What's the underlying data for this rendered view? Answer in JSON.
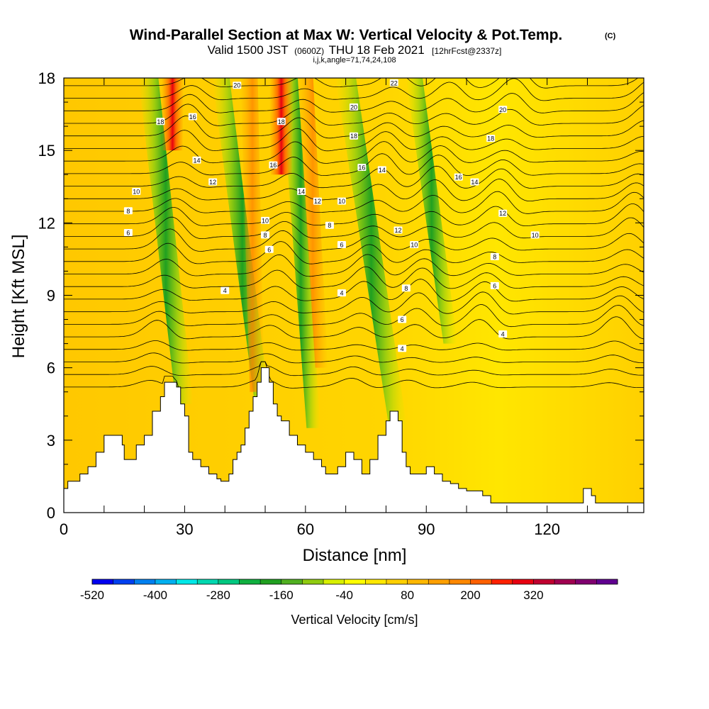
{
  "chart_data": {
    "type": "heatmap",
    "title": "Wind-Parallel Section at Max W: Vertical Velocity & Pot.Temp.",
    "title_units": "(C)",
    "subtitle": {
      "valid": "Valid 1500 JST",
      "utc": "(0600Z)",
      "date": "THU 18 Feb 2021",
      "forecast": "[12hrFcst@2337z]"
    },
    "grid_info": "i,j,k,angle=71,74,24,108",
    "xlabel": "Distance [nm]",
    "ylabel": "Height [Kft MSL]",
    "xlim": [
      0,
      144
    ],
    "ylim": [
      0,
      18
    ],
    "x_ticks": [
      0,
      30,
      60,
      90,
      120
    ],
    "y_ticks": [
      0,
      3,
      6,
      9,
      12,
      15,
      18
    ],
    "terrain": {
      "x": [
        0,
        1,
        2,
        4,
        6,
        8,
        10,
        14,
        14.5,
        15,
        16,
        18,
        20,
        22,
        24,
        25,
        26,
        27,
        28,
        29,
        30,
        31,
        32,
        34,
        36,
        38,
        39,
        40,
        41,
        42,
        43,
        44,
        45,
        46,
        47,
        48,
        49,
        50,
        51,
        52,
        53,
        54,
        56,
        58,
        60,
        62,
        64,
        65,
        66,
        68,
        70,
        72,
        74,
        75,
        76,
        78,
        80,
        81,
        82,
        83,
        84,
        85,
        86,
        88,
        90,
        92,
        94,
        96,
        98,
        100,
        104,
        106,
        110,
        114,
        118,
        122,
        126,
        128,
        129,
        130,
        131,
        132,
        136,
        140,
        144
      ],
      "y": [
        1.0,
        1.3,
        1.3,
        1.6,
        1.9,
        2.5,
        3.2,
        3.2,
        2.8,
        2.2,
        2.2,
        2.8,
        3.2,
        4.2,
        4.8,
        5.4,
        5.4,
        5.4,
        5.2,
        4.5,
        4.0,
        2.5,
        2.2,
        1.9,
        1.6,
        1.4,
        1.3,
        1.3,
        1.6,
        2.2,
        2.5,
        2.8,
        3.5,
        4.2,
        4.8,
        5.4,
        6.0,
        6.0,
        5.4,
        4.5,
        4.0,
        3.8,
        3.2,
        2.8,
        2.5,
        2.2,
        1.9,
        1.6,
        1.6,
        1.9,
        2.5,
        2.2,
        1.6,
        1.6,
        2.2,
        3.2,
        3.8,
        4.2,
        4.2,
        3.8,
        2.5,
        1.9,
        1.6,
        1.6,
        1.9,
        1.6,
        1.3,
        1.2,
        1.0,
        0.9,
        0.7,
        0.4,
        0.4,
        0.4,
        0.4,
        0.4,
        0.4,
        0.4,
        1.0,
        1.0,
        0.7,
        0.4,
        0.4,
        0.4,
        0.4
      ]
    },
    "theta_contours": {
      "levels": [
        4,
        6,
        8,
        10,
        12,
        14,
        16,
        18,
        20,
        22
      ],
      "base_heights_kft": [
        8.5,
        9.6,
        10.9,
        11.8,
        12.7,
        13.6,
        14.6,
        15.6,
        16.6,
        17.6
      ],
      "wave_crests_x": [
        22,
        50,
        72,
        86,
        102,
        136
      ],
      "labels": [
        {
          "level": "18",
          "x": 24,
          "y": 16.2
        },
        {
          "level": "16",
          "x": 32,
          "y": 16.4
        },
        {
          "level": "20",
          "x": 43,
          "y": 17.7
        },
        {
          "level": "14",
          "x": 33,
          "y": 14.6
        },
        {
          "level": "12",
          "x": 37,
          "y": 13.7
        },
        {
          "level": "10",
          "x": 18,
          "y": 13.3
        },
        {
          "level": "8",
          "x": 16,
          "y": 12.5
        },
        {
          "level": "6",
          "x": 16,
          "y": 11.6
        },
        {
          "level": "4",
          "x": 40,
          "y": 9.2
        },
        {
          "level": "18",
          "x": 54,
          "y": 16.2
        },
        {
          "level": "16",
          "x": 52,
          "y": 14.4
        },
        {
          "level": "10",
          "x": 50,
          "y": 12.1
        },
        {
          "level": "8",
          "x": 50,
          "y": 11.5
        },
        {
          "level": "6",
          "x": 51,
          "y": 10.9
        },
        {
          "level": "14",
          "x": 59,
          "y": 13.3
        },
        {
          "level": "12",
          "x": 63,
          "y": 12.9
        },
        {
          "level": "8",
          "x": 66,
          "y": 11.9
        },
        {
          "level": "6",
          "x": 69,
          "y": 11.1
        },
        {
          "level": "4",
          "x": 69,
          "y": 9.1
        },
        {
          "level": "10",
          "x": 69,
          "y": 12.9
        },
        {
          "level": "22",
          "x": 82,
          "y": 17.8
        },
        {
          "level": "20",
          "x": 72,
          "y": 16.8
        },
        {
          "level": "18",
          "x": 72,
          "y": 15.6
        },
        {
          "level": "16",
          "x": 74,
          "y": 14.3
        },
        {
          "level": "14",
          "x": 79,
          "y": 14.2
        },
        {
          "level": "12",
          "x": 83,
          "y": 11.7
        },
        {
          "level": "10",
          "x": 87,
          "y": 11.1
        },
        {
          "level": "8",
          "x": 85,
          "y": 9.3
        },
        {
          "level": "6",
          "x": 84,
          "y": 8.0
        },
        {
          "level": "4",
          "x": 84,
          "y": 6.8
        },
        {
          "level": "20",
          "x": 109,
          "y": 16.7
        },
        {
          "level": "18",
          "x": 106,
          "y": 15.5
        },
        {
          "level": "16",
          "x": 98,
          "y": 13.9
        },
        {
          "level": "14",
          "x": 102,
          "y": 13.7
        },
        {
          "level": "12",
          "x": 109,
          "y": 12.4
        },
        {
          "level": "10",
          "x": 117,
          "y": 11.5
        },
        {
          "level": "8",
          "x": 107,
          "y": 10.6
        },
        {
          "level": "6",
          "x": 107,
          "y": 9.4
        },
        {
          "level": "4",
          "x": 109,
          "y": 7.4
        }
      ]
    },
    "vertical_velocity_features": [
      {
        "x_base": 30,
        "x_top": 21,
        "y_base": 4.5,
        "value": -200
      },
      {
        "x_base": 50,
        "x_top": 39,
        "y_base": 3.5,
        "value": -160
      },
      {
        "x_base": 62,
        "x_top": 56,
        "y_base": 3.5,
        "value": -150
      },
      {
        "x_base": 83,
        "x_top": 70,
        "y_base": 3.5,
        "value": -210
      },
      {
        "x_base": 96,
        "x_top": 87,
        "y_base": 7.0,
        "value": -150
      },
      {
        "x_base": 27,
        "x_top": 27,
        "y_base": 15.0,
        "value": 240
      },
      {
        "x_base": 54,
        "x_top": 54,
        "y_base": 14.0,
        "value": 260
      },
      {
        "x_base": 48,
        "x_top": 46,
        "y_base": 5.0,
        "value": 160
      },
      {
        "x_base": 64,
        "x_top": 60,
        "y_base": 6.0,
        "value": 130
      }
    ],
    "colorbar": {
      "title": "Vertical Velocity [cm/s]",
      "tick_labels": [
        "-520",
        "-400",
        "-280",
        "-160",
        "-40",
        "80",
        "200",
        "320"
      ],
      "colors": [
        "#0000f0",
        "#0040f0",
        "#0080f0",
        "#00b0f0",
        "#00e8e8",
        "#00d8b0",
        "#00c880",
        "#10b040",
        "#20a020",
        "#50b020",
        "#90cc10",
        "#d8f000",
        "#ffff00",
        "#ffe800",
        "#ffd000",
        "#ffb800",
        "#ffa000",
        "#ff8800",
        "#ff6000",
        "#ff2000",
        "#e80010",
        "#c00030",
        "#a00050",
        "#800070",
        "#600090"
      ]
    }
  }
}
